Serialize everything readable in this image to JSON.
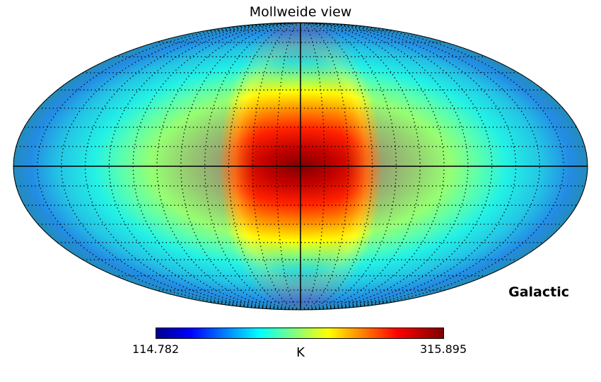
{
  "title": "Mollweide view",
  "coordsys_label": "Galactic",
  "colorbar": {
    "min_label": "114.782",
    "max_label": "315.895",
    "unit": "K",
    "colormap": "jet"
  },
  "chart_data": {
    "type": "heatmap",
    "projection": "mollweide",
    "title": "Mollweide view",
    "value_range": [
      114.782,
      315.895
    ],
    "unit": "K",
    "colormap": "jet",
    "graticule": {
      "style": "dotted",
      "longitude_step_deg": 15,
      "latitude_step_deg": 10
    },
    "axes_lines": [
      "equator",
      "central-meridian"
    ]
  }
}
